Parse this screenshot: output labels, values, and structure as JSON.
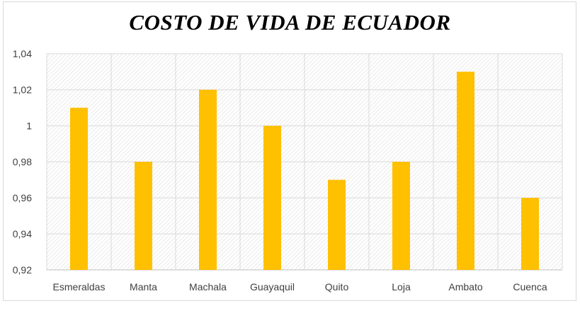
{
  "chart_data": {
    "type": "bar",
    "title": "COSTO DE VIDA DE ECUADOR",
    "xlabel": "",
    "ylabel": "",
    "categories": [
      "Esmeraldas",
      "Manta",
      "Machala",
      "Guayaquil",
      "Quito",
      "Loja",
      "Ambato",
      "Cuenca"
    ],
    "values": [
      1.01,
      0.98,
      1.02,
      1.0,
      0.97,
      0.98,
      1.03,
      0.96
    ],
    "ylim": [
      0.92,
      1.04
    ],
    "yticks": [
      0.92,
      0.94,
      0.96,
      0.98,
      1,
      1.02,
      1.04
    ],
    "ytick_labels": [
      "0,92",
      "0,94",
      "0,96",
      "0,98",
      "1",
      "1,02",
      "1,04"
    ],
    "bar_color": "#ffc000",
    "grid": true,
    "legend": "none"
  }
}
